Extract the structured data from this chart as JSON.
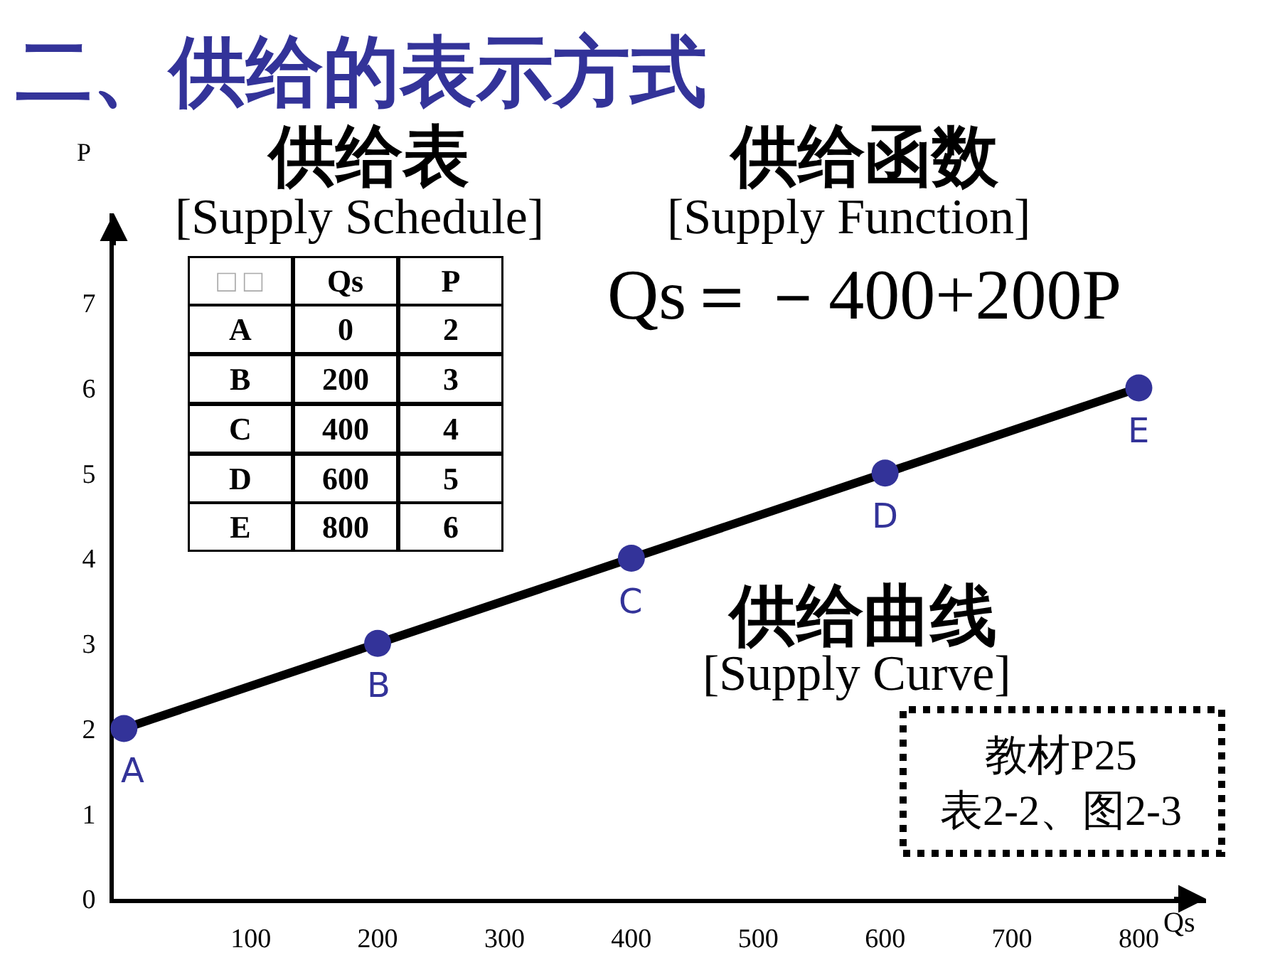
{
  "chart_data": {
    "type": "line",
    "title": "二、供给的表示方式",
    "xlabel": "Qs",
    "ylabel": "P",
    "annotations": [
      "供给表",
      "[Supply Schedule]",
      "供给函数",
      "[Supply Function]",
      "Qs＝－400+200P",
      "供给曲线",
      "[Supply Curve]",
      "教材P25\n表2-2、图2-3",
      "□ □",
      "Qs",
      "P",
      "A",
      "0",
      "2",
      "B",
      "200",
      "3",
      "C",
      "400",
      "4",
      "D",
      "600",
      "5",
      "E",
      "800",
      "6",
      {
        "text": "A",
        "x": 0,
        "y": 2
      },
      {
        "text": "B",
        "x": 200,
        "y": 3
      },
      {
        "text": "C",
        "x": 400,
        "y": 4
      },
      {
        "text": "D",
        "x": 600,
        "y": 5
      },
      {
        "text": "E",
        "x": 800,
        "y": 6
      }
    ],
    "x": [
      0,
      200,
      400,
      600,
      800
    ],
    "series": [
      {
        "color": "#000000",
        "colors": [
          "#333399",
          "#333399",
          "#333399",
          "#333399",
          "#333399"
        ],
        "values": [
          2,
          3,
          4,
          5,
          6
        ]
      }
    ],
    "xlim": [
      -8,
      853
    ],
    "ylim": [
      0,
      8.05
    ],
    "xticks": [
      100,
      200,
      300,
      400,
      500,
      600,
      700,
      800
    ],
    "yticks": [
      0,
      1,
      2,
      3,
      4,
      5,
      6,
      7
    ],
    "marker": "circle",
    "line_style": "solid"
  }
}
